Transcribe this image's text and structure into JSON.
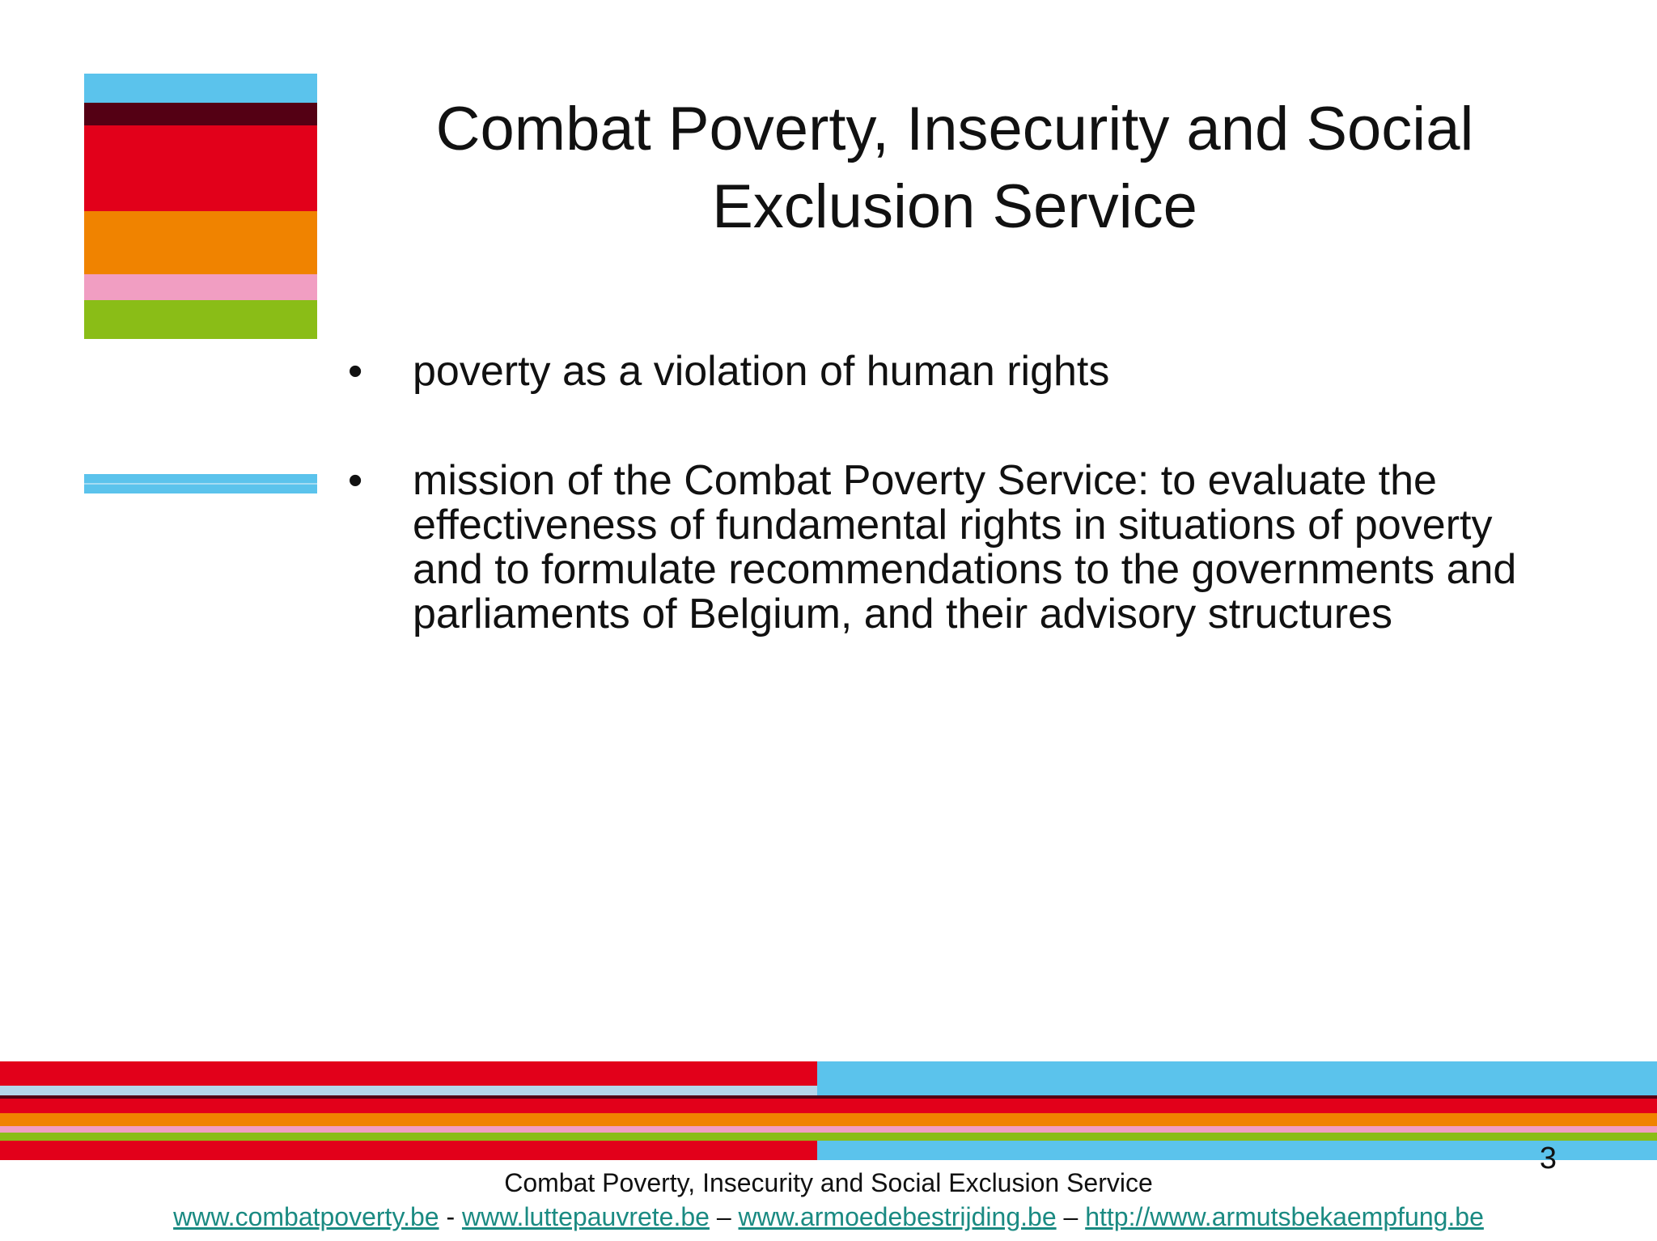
{
  "slide": {
    "title": "Combat Poverty, Insecurity and Social Exclusion Service",
    "bullet_symbol": "•",
    "bullets": [
      "poverty as a violation of human rights",
      "mission of the Combat Poverty Service: to evaluate the effectiveness of fundamental rights in situations of poverty and to formulate recommendations to the governments and parliaments of Belgium, and their advisory structures"
    ],
    "page_number": "3"
  },
  "footer": {
    "title": "Combat Poverty, Insecurity and Social Exclusion Service",
    "links": [
      "www.combatpoverty.be",
      "www.luttepauvrete.be",
      "www.armoedebestrijding.be",
      "http://www.armutsbekaempfung.be"
    ],
    "separators": [
      "-",
      "–",
      "–"
    ]
  },
  "colors": {
    "blue": "#5bc3ec",
    "maroon": "#540014",
    "red": "#e2001a",
    "orange": "#f08300",
    "pink": "#f19ec2",
    "green": "#8abd17",
    "link": "#1a8a82"
  }
}
